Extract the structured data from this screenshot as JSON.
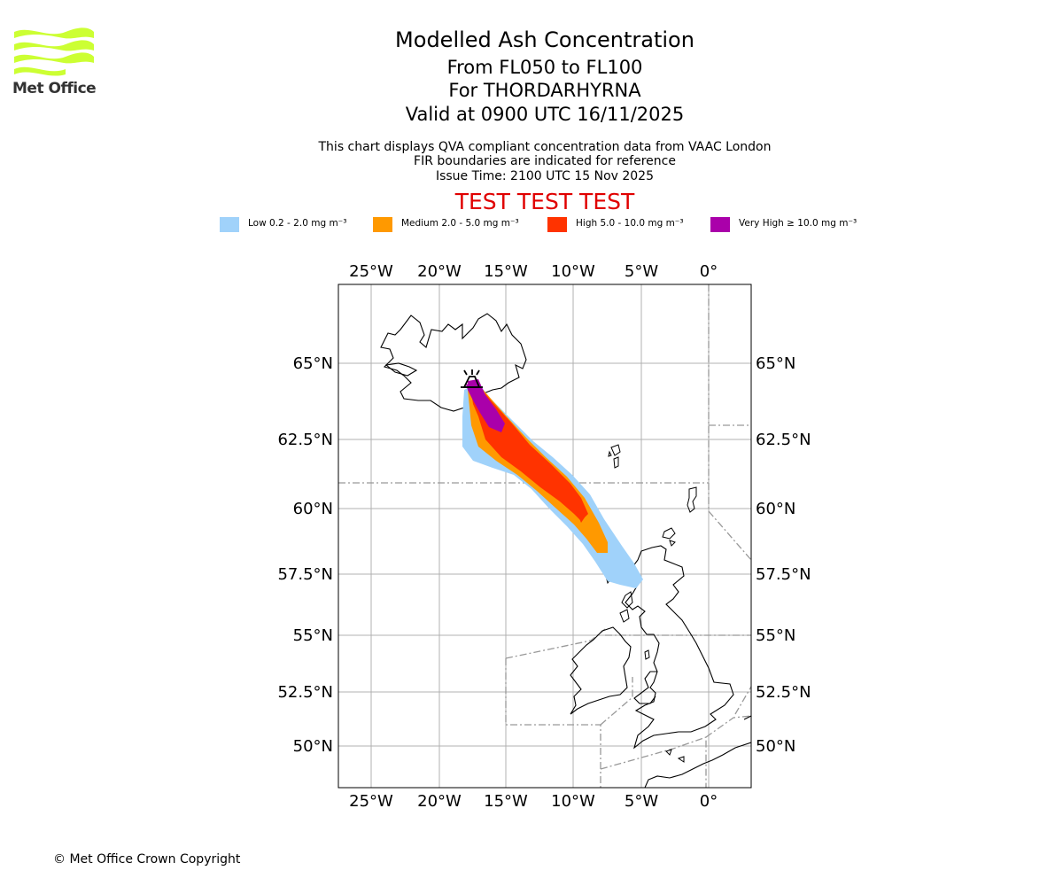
{
  "logo": {
    "text": "Met Office",
    "color": "#ccff33"
  },
  "title": {
    "main": "Modelled Ash Concentration",
    "levels": "From FL050 to FL100",
    "volcano": "For THORDARHYRNA",
    "valid": "Valid at 0900 UTC 16/11/2025"
  },
  "subtitle": {
    "line1": "This chart displays QVA compliant concentration data from VAAC London",
    "line2": "FIR boundaries are indicated for reference",
    "line3": "Issue Time: 2100 UTC 15 Nov 2025"
  },
  "test_banner": "TEST TEST TEST",
  "legend": [
    {
      "label": "Low 0.2 - 2.0 mg m⁻³",
      "color": "#a0d2fa"
    },
    {
      "label": "Medium 2.0 - 5.0 mg m⁻³",
      "color": "#ff9900"
    },
    {
      "label": "High 5.0 - 10.0 mg m⁻³",
      "color": "#ff3300"
    },
    {
      "label": "Very High ≥ 10.0 mg m⁻³",
      "color": "#aa00aa"
    }
  ],
  "map": {
    "lon_ticks": [
      "25°W",
      "20°W",
      "15°W",
      "10°W",
      "5°W",
      "0°"
    ],
    "lat_ticks": [
      "65°N",
      "62.5°N",
      "60°N",
      "57.5°N",
      "55°N",
      "52.5°N",
      "50°N"
    ]
  },
  "copyright": "© Met Office Crown Copyright"
}
